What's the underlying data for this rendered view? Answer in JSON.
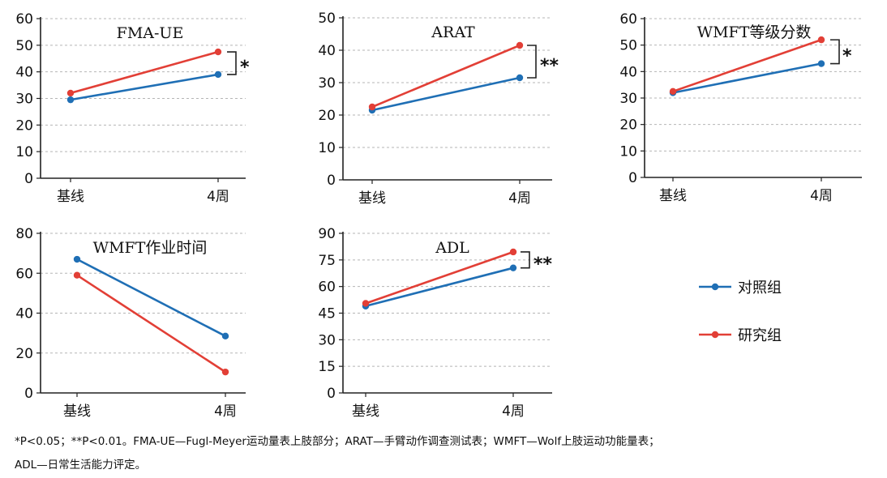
{
  "chart_data": [
    {
      "type": "line",
      "title": "FMA-UE",
      "categories": [
        "基线",
        "4周"
      ],
      "ylim": [
        0,
        60
      ],
      "yticks": [
        "0",
        "10",
        "20",
        "30",
        "40",
        "50",
        "60"
      ],
      "grid": true,
      "series": [
        {
          "name": "对照组",
          "values": [
            29.5,
            39
          ]
        },
        {
          "name": "研究组",
          "values": [
            32,
            47.5
          ]
        }
      ],
      "significance": "*"
    },
    {
      "type": "line",
      "title": "ARAT",
      "categories": [
        "基线",
        "4周"
      ],
      "ylim": [
        0,
        50
      ],
      "yticks": [
        "0",
        "10",
        "20",
        "30",
        "40",
        "50"
      ],
      "grid": true,
      "series": [
        {
          "name": "对照组",
          "values": [
            21.5,
            31.5
          ]
        },
        {
          "name": "研究组",
          "values": [
            22.5,
            41.5
          ]
        }
      ],
      "significance": "**"
    },
    {
      "type": "line",
      "title": "WMFT等级分数",
      "categories": [
        "基线",
        "4周"
      ],
      "ylim": [
        0,
        60
      ],
      "yticks": [
        "0",
        "10",
        "20",
        "30",
        "40",
        "50",
        "60"
      ],
      "grid": true,
      "series": [
        {
          "name": "对照组",
          "values": [
            32,
            43
          ]
        },
        {
          "name": "研究组",
          "values": [
            32.5,
            52
          ]
        }
      ],
      "significance": "*"
    },
    {
      "type": "line",
      "title": "WMFT作业时间",
      "categories": [
        "基线",
        "4周"
      ],
      "ylim": [
        0,
        80
      ],
      "yticks": [
        "0",
        "20",
        "40",
        "60",
        "80"
      ],
      "grid": true,
      "series": [
        {
          "name": "对照组",
          "values": [
            67,
            28.5
          ]
        },
        {
          "name": "研究组",
          "values": [
            59,
            10.5
          ]
        }
      ],
      "significance": ""
    },
    {
      "type": "line",
      "title": "ADL",
      "categories": [
        "基线",
        "4周"
      ],
      "ylim": [
        0,
        90
      ],
      "yticks": [
        "0",
        "15",
        "30",
        "45",
        "60",
        "75",
        "90"
      ],
      "grid": true,
      "series": [
        {
          "name": "对照组",
          "values": [
            49,
            70.5
          ]
        },
        {
          "name": "研究组",
          "values": [
            50.5,
            79.5
          ]
        }
      ],
      "significance": "**"
    }
  ],
  "legend": [
    {
      "label": "对照组",
      "color": "#1f6fb5"
    },
    {
      "label": "研究组",
      "color": "#e23f36"
    }
  ],
  "footnote": {
    "line1": "*P<0.05；**P<0.01。FMA-UE—Fugl-Meyer运动量表上肢部分；ARAT—手臂动作调查测试表；WMFT—Wolf上肢运动功能量表；",
    "line2": "ADL—日常生活能力评定。"
  }
}
